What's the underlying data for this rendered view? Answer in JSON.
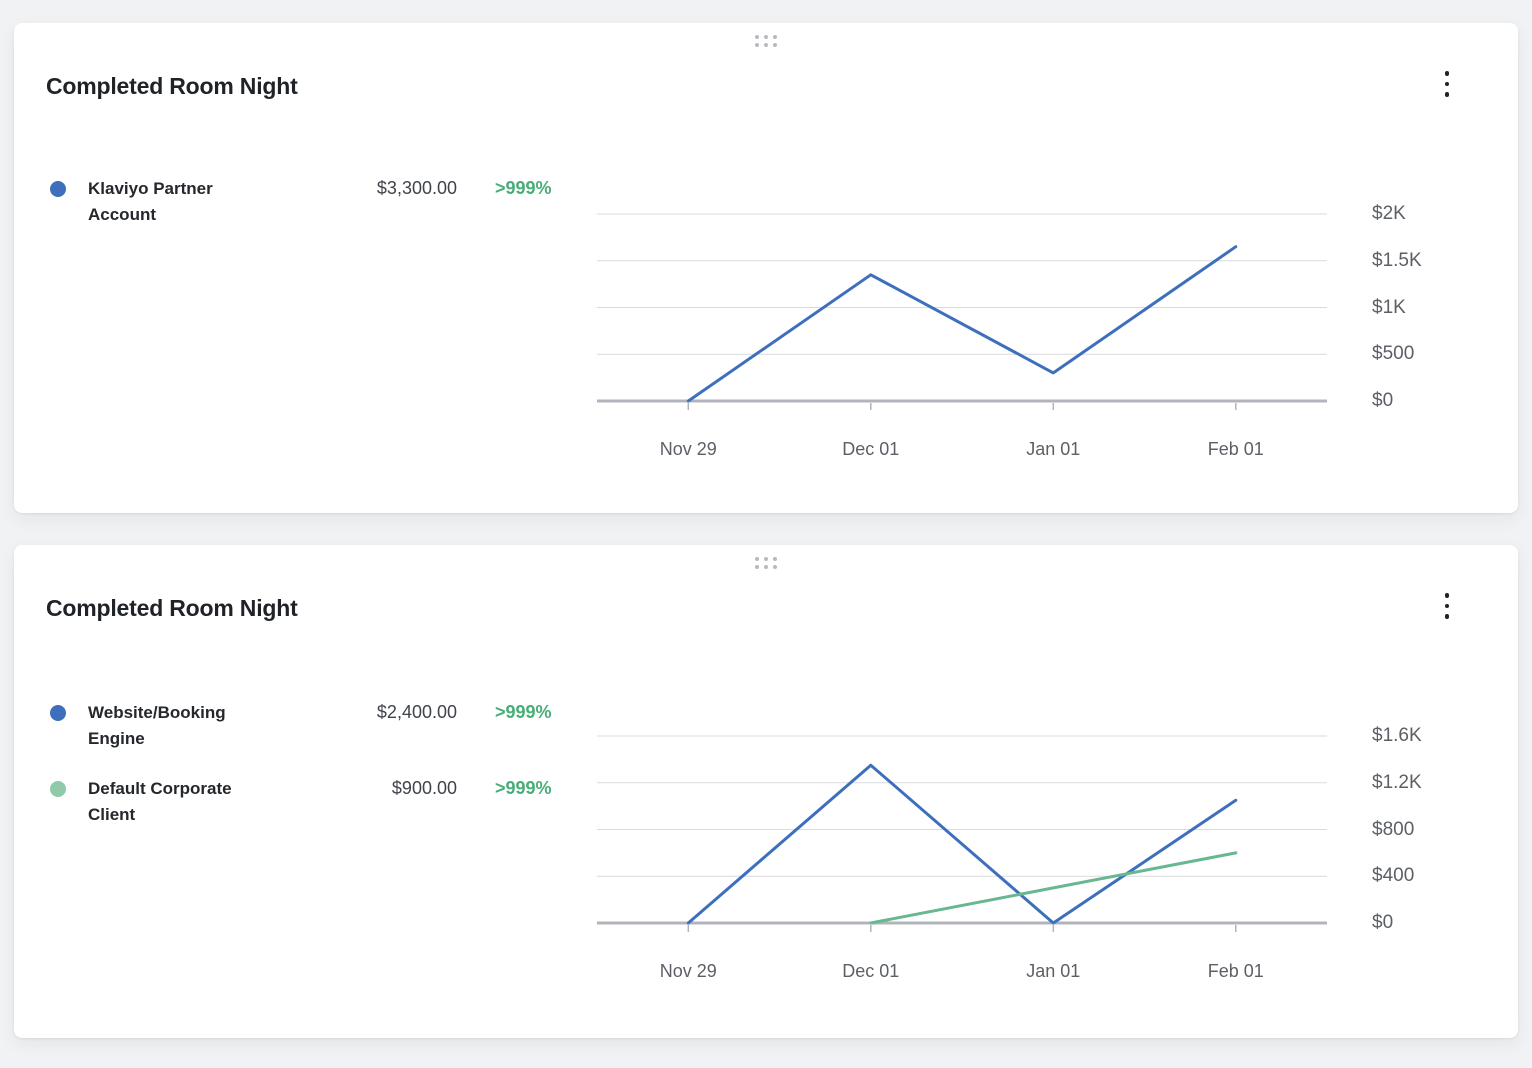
{
  "colors": {
    "page_background": "#f1f2f4",
    "card_background": "#ffffff",
    "gridline": "#d9dbde",
    "axis_line": "#b1b5bb",
    "axis_text": "#5c6066",
    "positive_green": "#49ad77",
    "series_blue": "#3d6fbd",
    "series_green": "#68b78e",
    "drag_handle_gray": "#b6bac0",
    "kebab_black": "#1f2227"
  },
  "widgets": [
    {
      "title": "Completed Room Night",
      "drag_handle_icon": "grip-dots-icon",
      "menu_icon": "kebab-menu-icon",
      "legend": [
        {
          "label": "Klaviyo Partner Account",
          "value": "$3,300.00",
          "delta": ">999%",
          "color": "#3d6fbd"
        }
      ]
    },
    {
      "title": "Completed Room Night",
      "drag_handle_icon": "grip-dots-icon",
      "menu_icon": "kebab-menu-icon",
      "legend": [
        {
          "label": "Website/Booking Engine",
          "value": "$2,400.00",
          "delta": ">999%",
          "color": "#3d6fbd"
        },
        {
          "label": "Default Corporate Client",
          "value": "$900.00",
          "delta": ">999%",
          "color": "#8fcaa9"
        }
      ]
    }
  ],
  "chart_data": [
    {
      "type": "line",
      "title": "Completed Room Night",
      "x": [
        "Nov 29",
        "Dec 01",
        "Jan 01",
        "Feb 01"
      ],
      "series": [
        {
          "name": "Klaviyo Partner Account",
          "color": "#3d6fbd",
          "values": [
            0,
            1350,
            300,
            1650
          ]
        }
      ],
      "y_axis": {
        "max": 2000,
        "ticks": [
          {
            "label": "$2K",
            "value": 2000
          },
          {
            "label": "$1.5K",
            "value": 1500
          },
          {
            "label": "$1K",
            "value": 1000
          },
          {
            "label": "$500",
            "value": 500
          },
          {
            "label": "$0",
            "value": 0
          }
        ]
      },
      "ylim": [
        0,
        2000
      ],
      "grid": true,
      "legend_position": "left",
      "total": "$3,300.00",
      "change": ">999%"
    },
    {
      "type": "line",
      "title": "Completed Room Night",
      "x": [
        "Nov 29",
        "Dec 01",
        "Jan 01",
        "Feb 01"
      ],
      "series": [
        {
          "name": "Website/Booking Engine",
          "color": "#3d6fbd",
          "values": [
            0,
            1350,
            0,
            1050
          ]
        },
        {
          "name": "Default Corporate Client",
          "color": "#68b78e",
          "values": [
            null,
            0,
            300,
            600
          ]
        }
      ],
      "y_axis": {
        "max": 1600,
        "ticks": [
          {
            "label": "$1.6K",
            "value": 1600
          },
          {
            "label": "$1.2K",
            "value": 1200
          },
          {
            "label": "$800",
            "value": 800
          },
          {
            "label": "$400",
            "value": 400
          },
          {
            "label": "$0",
            "value": 0
          }
        ]
      },
      "ylim": [
        0,
        1600
      ],
      "grid": true,
      "legend_position": "left",
      "totals": [
        "$2,400.00",
        "$900.00"
      ],
      "changes": [
        ">999%",
        ">999%"
      ]
    }
  ]
}
